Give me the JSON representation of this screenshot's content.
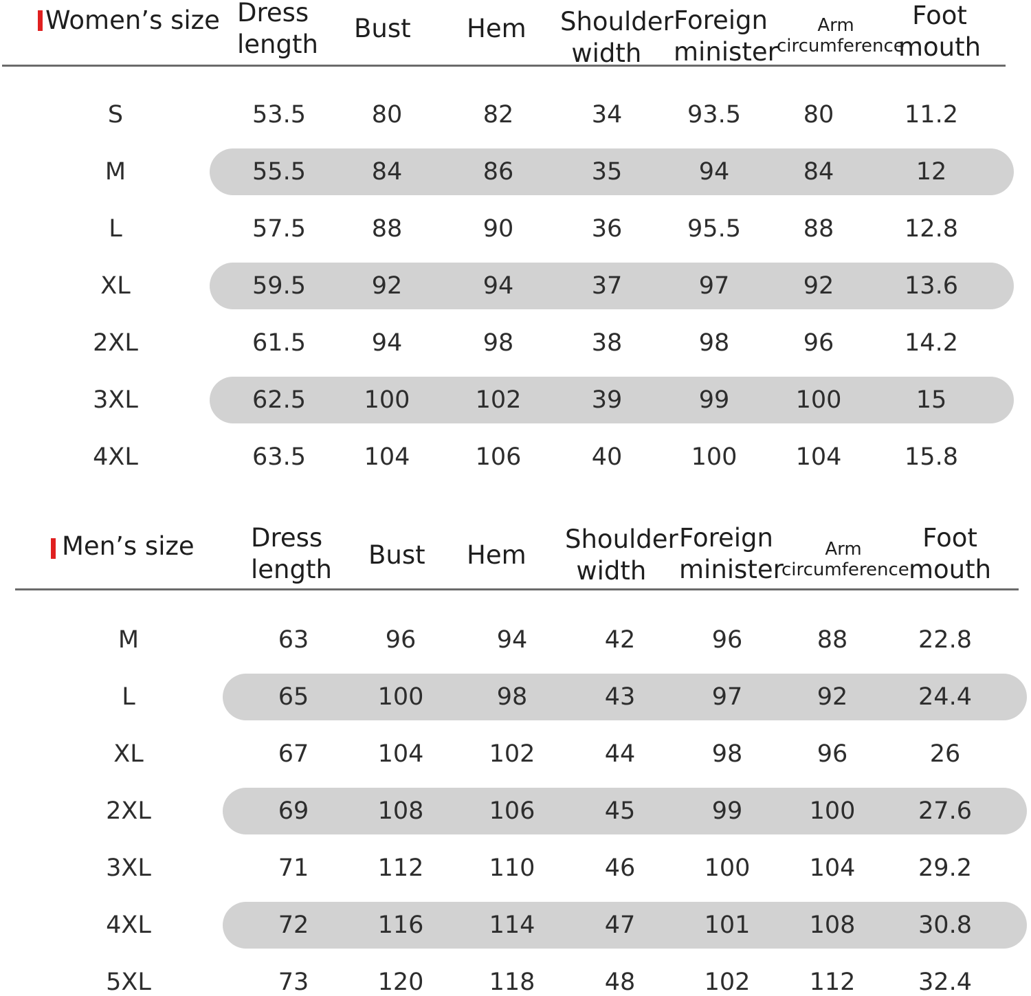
{
  "colors": {
    "tag": "#e02020",
    "pill": "#d2d2d2",
    "rule": "#6a6a6a"
  },
  "women": {
    "title": "Women’s size",
    "headers": {
      "dress_length": [
        "Dress",
        "length"
      ],
      "bust": "Bust",
      "hem": "Hem",
      "shoulder_width": [
        "Shoulder",
        "width"
      ],
      "foreign_minister": [
        "Foreign",
        "minister"
      ],
      "arm_circumference": [
        "Arm",
        "circumference"
      ],
      "foot_mouth": [
        "Foot",
        "mouth"
      ]
    },
    "rows": [
      [
        "S",
        "53.5",
        "80",
        "82",
        "34",
        "93.5",
        "80",
        "11.2"
      ],
      [
        "M",
        "55.5",
        "84",
        "86",
        "35",
        "94",
        "84",
        "12"
      ],
      [
        "L",
        "57.5",
        "88",
        "90",
        "36",
        "95.5",
        "88",
        "12.8"
      ],
      [
        "XL",
        "59.5",
        "92",
        "94",
        "37",
        "97",
        "92",
        "13.6"
      ],
      [
        "2XL",
        "61.5",
        "94",
        "98",
        "38",
        "98",
        "96",
        "14.2"
      ],
      [
        "3XL",
        "62.5",
        "100",
        "102",
        "39",
        "99",
        "100",
        "15"
      ],
      [
        "4XL",
        "63.5",
        "104",
        "106",
        "40",
        "100",
        "104",
        "15.8"
      ]
    ]
  },
  "men": {
    "title": "Men’s size",
    "headers": {
      "dress_length": [
        "Dress",
        "length"
      ],
      "bust": "Bust",
      "hem": "Hem",
      "shoulder_width": [
        "Shoulder",
        "width"
      ],
      "foreign_minister": [
        "Foreign",
        "minister"
      ],
      "arm_circumference": [
        "Arm",
        "circumference"
      ],
      "foot_mouth": [
        "Foot",
        "mouth"
      ]
    },
    "rows": [
      [
        "M",
        "63",
        "96",
        "94",
        "42",
        "96",
        "88",
        "22.8"
      ],
      [
        "L",
        "65",
        "100",
        "98",
        "43",
        "97",
        "92",
        "24.4"
      ],
      [
        "XL",
        "67",
        "104",
        "102",
        "44",
        "98",
        "96",
        "26"
      ],
      [
        "2XL",
        "69",
        "108",
        "106",
        "45",
        "99",
        "100",
        "27.6"
      ],
      [
        "3XL",
        "71",
        "112",
        "110",
        "46",
        "100",
        "104",
        "29.2"
      ],
      [
        "4XL",
        "72",
        "116",
        "114",
        "47",
        "101",
        "108",
        "30.8"
      ],
      [
        "5XL",
        "73",
        "120",
        "118",
        "48",
        "102",
        "112",
        "32.4"
      ]
    ]
  }
}
